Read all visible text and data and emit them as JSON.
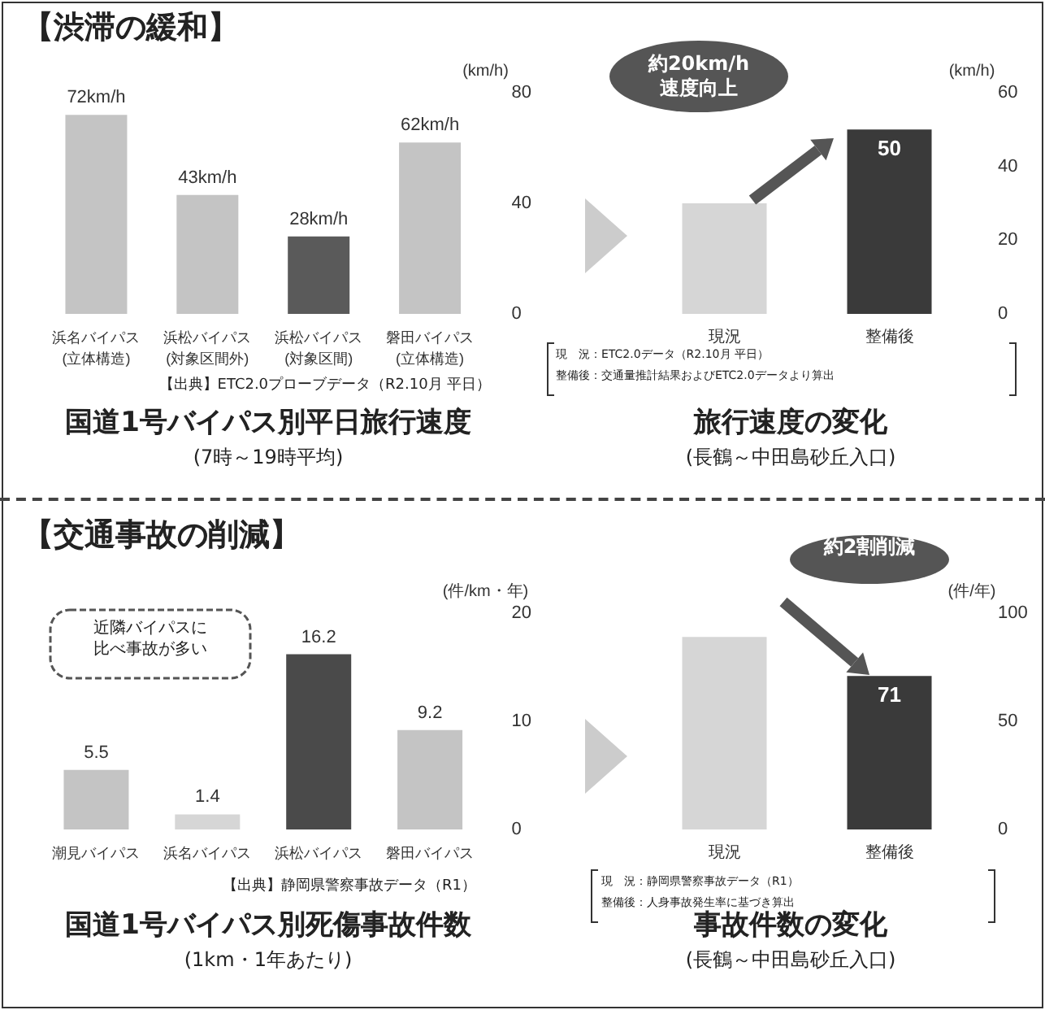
{
  "chart_data": [
    {
      "type": "bar",
      "title": "国道1号バイパス別平日旅行速度",
      "subtitle": "(7時～19時平均)",
      "ylabel": "(km/h)",
      "categories": [
        "浜名バイパス\n(立体構造)",
        "浜松バイパス\n(対象区間外)",
        "浜松バイパス\n(対象区間)",
        "磐田バイパス\n(立体構造)"
      ],
      "values": [
        72,
        43,
        28,
        62
      ],
      "value_labels": [
        "72km/h",
        "43km/h",
        "28km/h",
        "62km/h"
      ],
      "colors": [
        "#c4c4c4",
        "#c4c4c4",
        "#5a5a5a",
        "#c4c4c4"
      ],
      "ylim": [
        0,
        80
      ],
      "yticks": [
        0,
        40,
        80
      ],
      "grid": false,
      "annotations": [
        "【渋滞の緩和】",
        "【出典】ETC2.0プローブデータ（R2.10月 平日）"
      ]
    },
    {
      "type": "bar",
      "title": "旅行速度の変化",
      "subtitle": "(長鶴～中田島砂丘入口)",
      "ylabel": "(km/h)",
      "categories": [
        "現況",
        "整備後"
      ],
      "values": [
        30,
        50
      ],
      "value_labels": [
        null,
        "50"
      ],
      "colors": [
        "#d6d6d6",
        "#3a3a3a"
      ],
      "ylim": [
        0,
        60
      ],
      "yticks": [
        0,
        20,
        40,
        60
      ],
      "grid": false,
      "annotations": [
        "約20km/h速度向上",
        "現　況：ETC2.0データ（R2.10月 平日）",
        "整備後：交通量推計結果およびETC2.0データより算出"
      ]
    },
    {
      "type": "bar",
      "title": "国道1号バイパス別死傷事故件数",
      "subtitle": "(1km・1年あたり)",
      "ylabel": "(件/km・年)",
      "categories": [
        "潮見バイパス",
        "浜名バイパス",
        "浜松バイパス",
        "磐田バイパス"
      ],
      "values": [
        5.5,
        1.4,
        16.2,
        9.2
      ],
      "data_labels": true,
      "colors": [
        "#c4c4c4",
        "#d6d6d6",
        "#4a4a4a",
        "#c4c4c4"
      ],
      "ylim": [
        0,
        20
      ],
      "yticks": [
        0,
        10,
        20
      ],
      "grid": false,
      "annotations": [
        "【交通事故の削減】",
        "近隣バイパスに比べ事故が多い",
        "【出典】静岡県警察事故データ（R1）"
      ]
    },
    {
      "type": "bar",
      "title": "事故件数の変化",
      "subtitle": "(長鶴～中田島砂丘入口)",
      "ylabel": "(件/年)",
      "categories": [
        "現況",
        "整備後"
      ],
      "values": [
        89,
        71
      ],
      "value_labels": [
        null,
        "71"
      ],
      "colors": [
        "#d6d6d6",
        "#3a3a3a"
      ],
      "ylim": [
        0,
        100
      ],
      "yticks": [
        0,
        50,
        100
      ],
      "grid": false,
      "annotations": [
        "約2割削減",
        "現　況：静岡県警察事故データ（R1）",
        "整備後：人身事故発生率に基づき算出"
      ]
    }
  ]
}
